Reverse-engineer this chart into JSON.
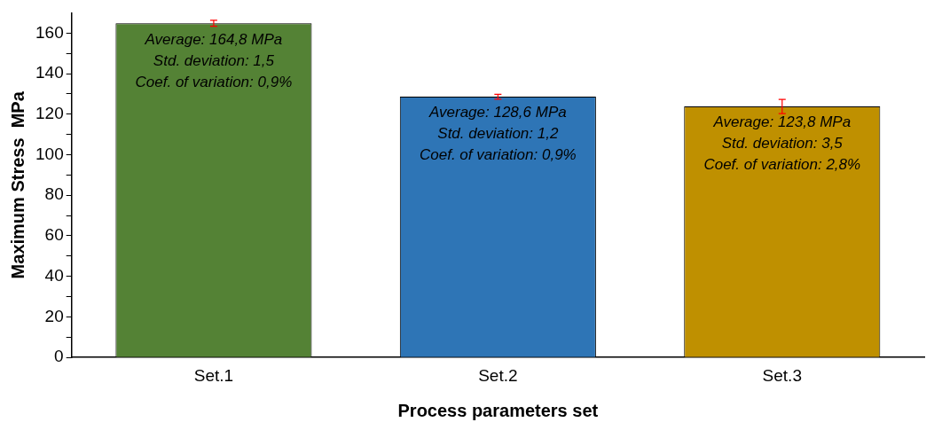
{
  "chart_data": {
    "type": "bar",
    "xlabel": "Process parameters set",
    "ylabel": "Maximum Stress  MPa",
    "categories": [
      "Set.1",
      "Set.2",
      "Set.3"
    ],
    "values": [
      164.8,
      128.6,
      123.8
    ],
    "errors": [
      1.5,
      1.2,
      3.5
    ],
    "colors": [
      "#548235",
      "#2e75b6",
      "#bf9000"
    ],
    "ylim": [
      0,
      170
    ],
    "yticks": [
      0,
      {
        "value": 10,
        "label": null
      },
      20,
      {
        "value": 30,
        "label": null
      },
      40,
      {
        "value": 50,
        "label": null
      },
      60,
      {
        "value": 70,
        "label": null
      },
      80,
      {
        "value": 90,
        "label": null
      },
      100,
      {
        "value": 110,
        "label": null
      },
      120,
      {
        "value": 130,
        "label": null
      },
      140,
      {
        "value": 150,
        "label": null
      },
      160
    ],
    "grid": false,
    "legend": false,
    "annotations": [
      {
        "text": "Average: 164,8 MPa\nStd. deviation: 1,5\nCoef. of variation: 0,9%",
        "x": "Set.1",
        "y": 164.8
      },
      {
        "text": "Average: 128,6 MPa\nStd. deviation: 1,2\nCoef. of variation: 0,9%",
        "x": "Set.2",
        "y": 128.6
      },
      {
        "text": "Average: 123,8 MPa\nStd. deviation: 3,5\nCoef. of variation: 2,8%",
        "x": "Set.3",
        "y": 123.8
      }
    ]
  }
}
